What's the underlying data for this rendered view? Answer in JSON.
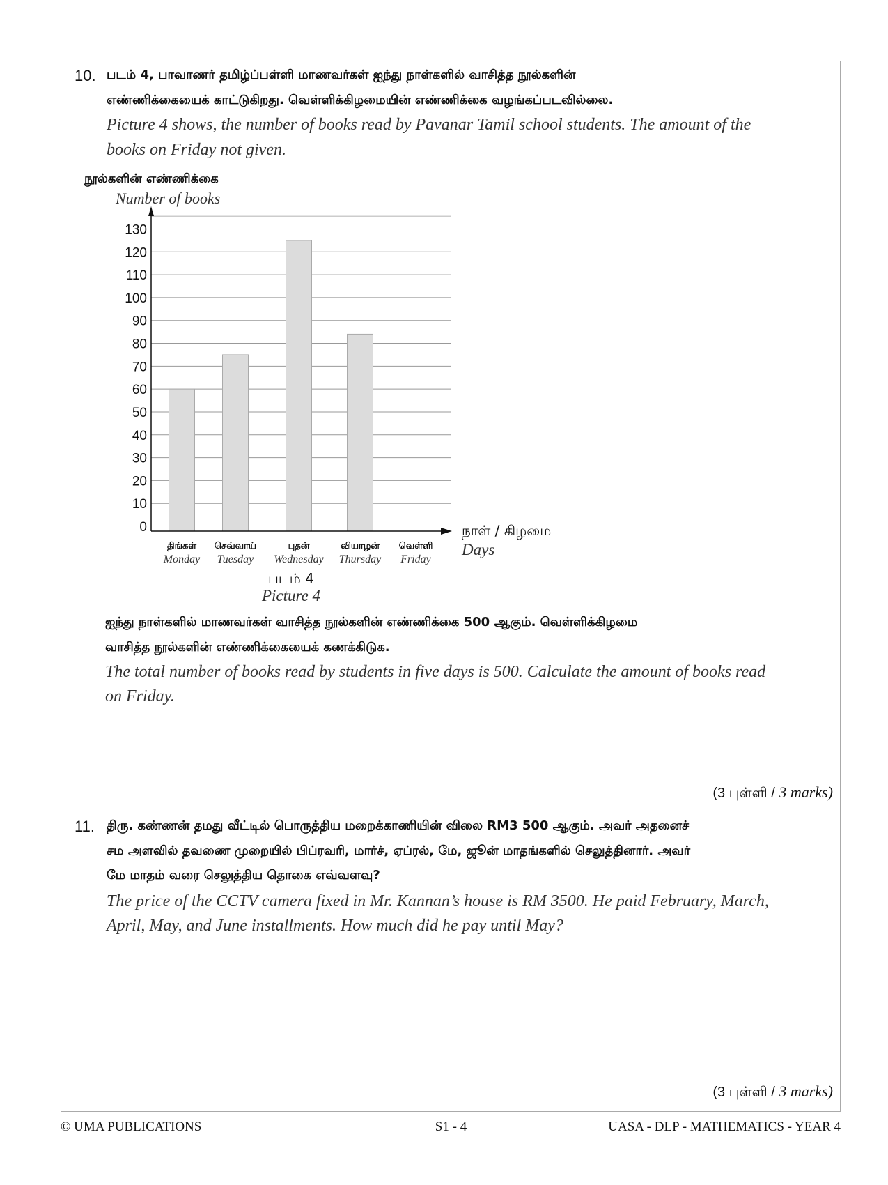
{
  "q10": {
    "number": "10.",
    "tamil_lines": [
      "படம் 4, பாவாணர் தமிழ்ப்பள்ளி மாணவர்கள் ஐந்து நாள்களில் வாசித்த நூல்களின்",
      "எண்ணிக்கையைக் காட்டுகிறது. வெள்ளிக்கிழமையின் எண்ணிக்கை வழங்கப்படவில்லை."
    ],
    "english_lines": [
      "Picture 4 shows, the number of books read by Pavanar Tamil school students. The amount of the",
      "books on Friday not given."
    ],
    "task_tamil_lines": [
      "ஐந்து நாள்களில் மாணவர்கள் வாசித்த நூல்களின் எண்ணிக்கை 500 ஆகும். வெள்ளிக்கிழமை",
      "வாசித்த நூல்களின் எண்ணிக்கையைக் கணக்கிடுக."
    ],
    "task_english_lines": [
      "The total number of books read by students in five days is 500. Calculate the amount of books read",
      "on Friday."
    ],
    "marks_tamil": "(3 புள்ளி /",
    "marks_english": "3 marks)"
  },
  "chart_data": {
    "type": "bar",
    "title": "படம் 4",
    "subtitle": "Picture 4",
    "ylabel_tamil": "நூல்களின் எண்ணிக்கை",
    "ylabel": "Number of books",
    "xlabel_tamil": "நாள் / கிழமை",
    "xlabel": "Days",
    "categories_tamil": [
      "திங்கள்",
      "செவ்வாய்",
      "புதன்",
      "வியாழன்",
      "வெள்ளி"
    ],
    "categories": [
      "Monday",
      "Tuesday",
      "Wednesday",
      "Thursday",
      "Friday"
    ],
    "values": [
      60,
      75,
      125,
      84,
      null
    ],
    "yticks": [
      0,
      10,
      20,
      30,
      40,
      50,
      60,
      70,
      80,
      90,
      100,
      110,
      120,
      130
    ],
    "ylim": [
      0,
      130
    ],
    "grid": true,
    "bar_color": "#dcdcdc"
  },
  "q11": {
    "number": "11.",
    "tamil_lines": [
      "திரு. கண்ணன் தமது வீட்டில் பொருத்திய மறைக்காணியின் விலை RM3 500 ஆகும். அவர் அதனைச்",
      "சம அளவில் தவணை முறையில் பிப்ரவரி, மார்ச், ஏப்ரல், மே, ஜூன் மாதங்களில் செலுத்தினார். அவர்",
      "மே மாதம் வரை செலுத்திய தொகை எவ்வளவு?"
    ],
    "english_lines": [
      "The price of the CCTV camera fixed in Mr. Kannan’s house is RM 3500. He paid February, March,",
      "April, May, and June installments. How much did he pay until May?"
    ],
    "marks_tamil": "(3 புள்ளி /",
    "marks_english": "3 marks)"
  },
  "footer": {
    "left": "© UMA PUBLICATIONS",
    "center": "S1 - 4",
    "right": "UASA - DLP - MATHEMATICS - YEAR 4"
  }
}
